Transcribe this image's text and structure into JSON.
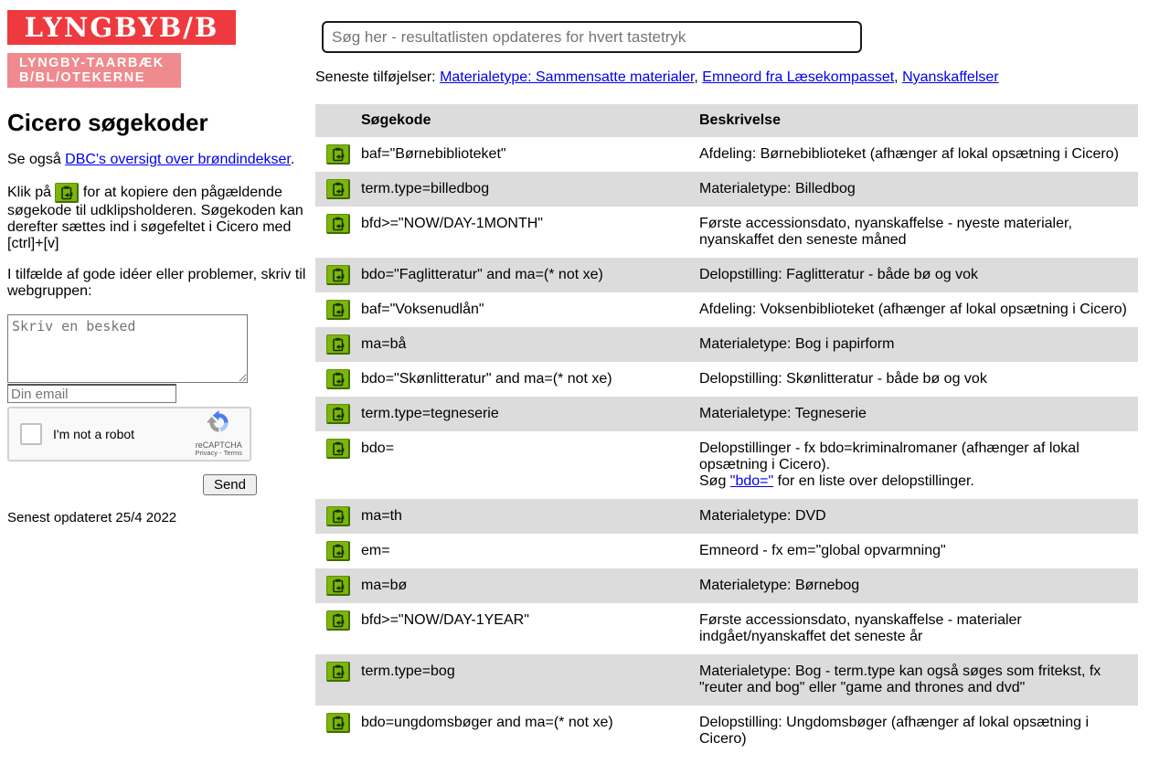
{
  "logo": {
    "main": "LYNGBYB/B",
    "sub_line1": "LYNGBY-TAARBÆK",
    "sub_line2": "B/BL/OTEKERNE",
    "red": "#ee3a3f",
    "pink": "#ef8a8e"
  },
  "sidebar": {
    "title": "Cicero søgekoder",
    "see_also_prefix": "Se også ",
    "see_also_link": "DBC's oversigt over brøndindekser",
    "see_also_suffix": ".",
    "copy_hint_pre": "Klik på ",
    "copy_hint_post": " for at kopiere den pågældende søgekode til udklipsholderen. Søgekoden kan derefter sættes ind i søgefeltet i Cicero med [ctrl]+[v]",
    "feedback_prompt": "I tilfælde af gode idéer eller problemer, skriv til webgruppen:",
    "message_placeholder": "Skriv en besked",
    "email_placeholder": "Din email",
    "recaptcha": {
      "label": "I'm not a robot",
      "brand": "reCAPTCHA",
      "links": "Privacy - Terms"
    },
    "send_label": "Send",
    "last_updated": "Senest opdateret 25/4 2022"
  },
  "main": {
    "search_placeholder": "Søg her - resultatlisten opdateres for hvert tastetryk",
    "recent_label": "Seneste tilføjelser: ",
    "recent_links": [
      "Materialetype: Sammensatte materialer",
      "Emneord fra Læsekompasset",
      "Nyanskaffelser"
    ],
    "recent_separator": ", ",
    "table": {
      "headers": [
        "",
        "Søgekode",
        "Beskrivelse"
      ],
      "rows": [
        {
          "code": "baf=\"Børnebiblioteket\"",
          "desc": "Afdeling: Børnebiblioteket (afhænger af lokal opsætning i Cicero)"
        },
        {
          "code": "term.type=billedbog",
          "desc": "Materialetype: Billedbog"
        },
        {
          "code": "bfd>=\"NOW/DAY-1MONTH\"",
          "desc": "Første accessionsdato, nyanskaffelse - nyeste materialer, nyanskaffet den seneste måned"
        },
        {
          "code": "bdo=\"Faglitteratur\" and ma=(* not xe)",
          "desc": "Delopstilling: Faglitteratur - både bø og vok"
        },
        {
          "code": "baf=\"Voksenudlån\"",
          "desc": "Afdeling: Voksenbiblioteket (afhænger af lokal opsætning i Cicero)"
        },
        {
          "code": "ma=bå",
          "desc": "Materialetype: Bog i papirform"
        },
        {
          "code": "bdo=\"Skønlitteratur\" and ma=(* not xe)",
          "desc": "Delopstilling: Skønlitteratur - både bø og vok"
        },
        {
          "code": "term.type=tegneserie",
          "desc": "Materialetype: Tegneserie"
        },
        {
          "code": "bdo=",
          "desc": "Delopstillinger - fx bdo=kriminalromaner (afhænger af lokal opsætning i Cicero).",
          "desc2": {
            "pre": "Søg ",
            "link": "\"bdo=\"",
            "post": " for en liste over delopstillinger."
          }
        },
        {
          "code": "ma=th",
          "desc": "Materialetype: DVD"
        },
        {
          "code": "em=",
          "desc": "Emneord - fx em=\"global opvarmning\""
        },
        {
          "code": "ma=bø",
          "desc": "Materialetype: Børnebog"
        },
        {
          "code": "bfd>=\"NOW/DAY-1YEAR\"",
          "desc": "Første accessionsdato, nyanskaffelse - materialer indgået/nyanskaffet det seneste år"
        },
        {
          "code": "term.type=bog",
          "desc": "Materialetype: Bog - term.type kan også søges som fritekst, fx \"reuter and bog\" eller \"game and thrones and dvd\""
        },
        {
          "code": "bdo=ungdomsbøger and ma=(* not xe)",
          "desc": "Delopstilling: Ungdomsbøger (afhænger af lokal opsætning i Cicero)"
        }
      ]
    }
  }
}
